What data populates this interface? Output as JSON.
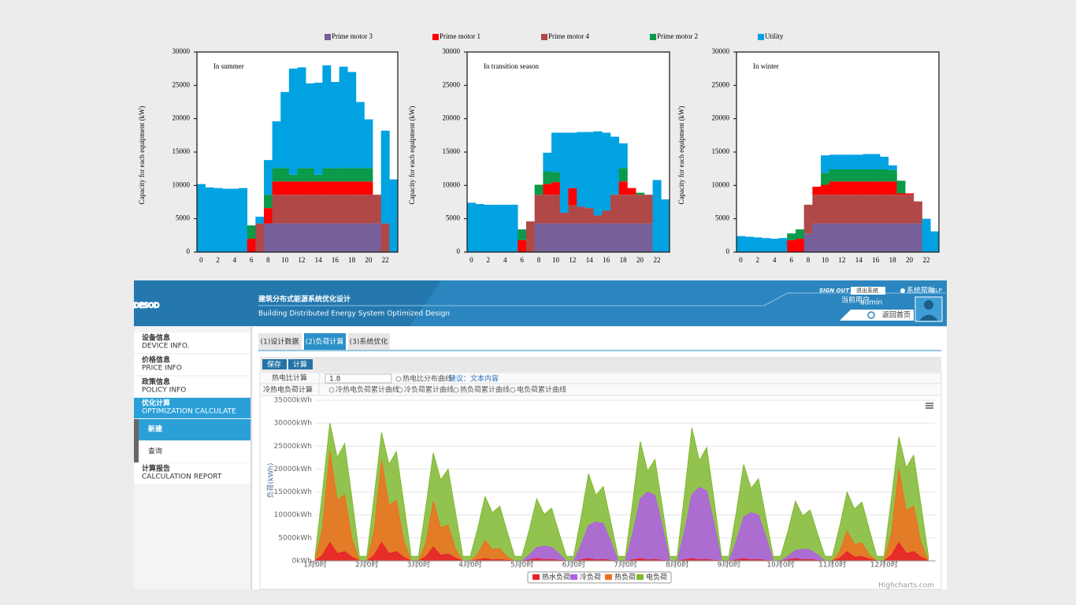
{
  "chart_data": [
    {
      "type": "bar",
      "title": "In summer",
      "y_label": "Capacity for each equipment (kW)",
      "categories": [
        "0",
        null,
        "2",
        null,
        "4",
        null,
        "6",
        null,
        "8",
        null,
        "10",
        null,
        "12",
        null,
        "14",
        null,
        "16",
        null,
        "18",
        null,
        "20",
        null,
        "22",
        null
      ],
      "ylim": [
        0,
        30000
      ],
      "yticks": [
        0,
        5000,
        10000,
        15000,
        20000,
        25000,
        30000
      ],
      "series": [
        {
          "name": "Prime motor 3",
          "color": "#76609a",
          "values": [
            0,
            0,
            0,
            0,
            0,
            0,
            0,
            0,
            4300,
            4300,
            4300,
            4300,
            4300,
            4300,
            4300,
            4300,
            4300,
            4300,
            4300,
            4300,
            4300,
            4300,
            0,
            0
          ]
        },
        {
          "name": "Prime motor 1",
          "color": "#ff0000",
          "values": [
            0,
            0,
            0,
            0,
            0,
            0,
            2000,
            0,
            2300,
            2000,
            2000,
            2000,
            2000,
            2000,
            2000,
            2000,
            2000,
            2000,
            2000,
            2000,
            2000,
            0,
            0,
            0
          ]
        },
        {
          "name": "Prime motor 4",
          "color": "#b04848",
          "values": [
            0,
            0,
            0,
            0,
            0,
            0,
            0,
            4300,
            0,
            4300,
            4300,
            4300,
            4300,
            4300,
            4300,
            4300,
            4300,
            4300,
            4300,
            4300,
            4300,
            4300,
            4300,
            0
          ]
        },
        {
          "name": "Prime motor 2",
          "color": "#0a9a4a",
          "values": [
            0,
            0,
            0,
            0,
            0,
            0,
            2000,
            0,
            2000,
            2000,
            2000,
            1000,
            2000,
            2000,
            1000,
            2000,
            2000,
            2000,
            2000,
            2000,
            2000,
            0,
            0,
            0
          ]
        },
        {
          "name": "Utility",
          "color": "#00a2e2",
          "values": [
            10200,
            9700,
            9600,
            9500,
            9500,
            9600,
            0,
            1000,
            5200,
            7000,
            11400,
            15900,
            15100,
            12700,
            13800,
            15400,
            12900,
            15200,
            14400,
            9900,
            7300,
            0,
            13900,
            10900
          ]
        }
      ]
    },
    {
      "type": "bar",
      "title": "In transition season",
      "y_label": "Capacity for each equipment (kW)",
      "categories": [
        "0",
        null,
        "2",
        null,
        "4",
        null,
        "6",
        null,
        "8",
        null,
        "10",
        null,
        "12",
        null,
        "14",
        null,
        "16",
        null,
        "18",
        null,
        "20",
        null,
        "22",
        null
      ],
      "ylim": [
        0,
        30000
      ],
      "yticks": [
        0,
        5000,
        10000,
        15000,
        20000,
        25000,
        30000
      ],
      "series": [
        {
          "values": [
            0,
            0,
            0,
            0,
            0,
            0,
            0,
            0,
            4300,
            4300,
            4300,
            4300,
            4300,
            4300,
            4300,
            4300,
            4300,
            4300,
            4300,
            4300,
            4300,
            4300,
            0,
            0
          ]
        },
        {
          "values": [
            0,
            0,
            0,
            0,
            0,
            0,
            1800,
            0,
            0,
            1600,
            1900,
            0,
            2600,
            0,
            0,
            0,
            0,
            0,
            2000,
            1000,
            0,
            0,
            0,
            0
          ]
        },
        {
          "values": [
            0,
            0,
            0,
            0,
            0,
            0,
            0,
            4600,
            4300,
            4300,
            4300,
            1600,
            2700,
            2500,
            2300,
            1200,
            1900,
            4300,
            4300,
            4300,
            4300,
            4300,
            0,
            0
          ]
        },
        {
          "values": [
            0,
            0,
            0,
            0,
            0,
            0,
            1600,
            0,
            1500,
            1900,
            1500,
            0,
            0,
            0,
            0,
            0,
            0,
            0,
            2000,
            0,
            300,
            0,
            0,
            0
          ]
        },
        {
          "values": [
            7400,
            7200,
            7100,
            7100,
            7100,
            7100,
            0,
            0,
            0,
            2800,
            5900,
            12000,
            8300,
            11200,
            11400,
            12600,
            11700,
            8700,
            3700,
            0,
            0,
            0,
            10800,
            7900
          ]
        }
      ]
    },
    {
      "type": "bar",
      "title": "In winter",
      "y_label": "Capacity for each equipment (kW)",
      "categories": [
        "0",
        null,
        "2",
        null,
        "4",
        null,
        "6",
        null,
        "8",
        null,
        "10",
        null,
        "12",
        null,
        "14",
        null,
        "16",
        null,
        "18",
        null,
        "20",
        null,
        "22",
        null
      ],
      "ylim": [
        0,
        30000
      ],
      "yticks": [
        0,
        5000,
        10000,
        15000,
        20000,
        25000,
        30000
      ],
      "series": [
        {
          "values": [
            0,
            0,
            0,
            0,
            0,
            0,
            0,
            0,
            2800,
            4300,
            4300,
            4300,
            4300,
            4300,
            4300,
            4300,
            4300,
            4300,
            4300,
            4300,
            4300,
            4300,
            0,
            0
          ]
        },
        {
          "values": [
            0,
            0,
            0,
            0,
            0,
            0,
            1800,
            2000,
            0,
            1200,
            1500,
            2000,
            2000,
            2000,
            2000,
            2000,
            2000,
            2000,
            2000,
            200,
            200,
            0,
            0,
            0
          ]
        },
        {
          "values": [
            0,
            0,
            0,
            0,
            0,
            0,
            0,
            0,
            4300,
            4300,
            4300,
            4300,
            4300,
            4300,
            4300,
            4300,
            4300,
            4300,
            4300,
            4300,
            4300,
            3300,
            0,
            0
          ]
        },
        {
          "values": [
            0,
            0,
            0,
            0,
            0,
            0,
            1000,
            1400,
            0,
            0,
            1800,
            1800,
            1800,
            1800,
            1800,
            1800,
            1800,
            1800,
            1700,
            1900,
            0,
            0,
            0,
            0
          ]
        },
        {
          "values": [
            2400,
            2300,
            2200,
            2100,
            2000,
            2100,
            0,
            0,
            0,
            0,
            2600,
            2200,
            2200,
            2200,
            2200,
            2300,
            2300,
            1900,
            700,
            0,
            0,
            0,
            5000,
            3100
          ]
        }
      ]
    },
    {
      "type": "area",
      "y_label": "负荷(kWh)",
      "credits": "Highcharts.com",
      "categories": [
        "1月0时",
        null,
        null,
        null,
        null,
        null,
        null,
        "2月0时",
        null,
        null,
        null,
        null,
        null,
        null,
        "3月0时",
        null,
        null,
        null,
        null,
        null,
        null,
        "4月0时",
        null,
        null,
        null,
        null,
        null,
        null,
        "5月0时",
        null,
        null,
        null,
        null,
        null,
        null,
        "6月0时",
        null,
        null,
        null,
        null,
        null,
        null,
        "7月0时",
        null,
        null,
        null,
        null,
        null,
        null,
        "8月0时",
        null,
        null,
        null,
        null,
        null,
        null,
        "9月0时",
        null,
        null,
        null,
        null,
        null,
        null,
        "10月0时",
        null,
        null,
        null,
        null,
        null,
        null,
        "11月0时",
        null,
        null,
        null,
        null,
        null,
        null,
        "12月0时",
        null,
        null,
        null,
        null,
        null,
        null
      ],
      "ylim": [
        0,
        35000
      ],
      "yticks": [
        {
          "value": 0,
          "label": "0kWh"
        },
        {
          "value": 5000,
          "label": "5000kWh"
        },
        {
          "value": 10000,
          "label": "10000kWh"
        },
        {
          "value": 15000,
          "label": "15000kWh"
        },
        {
          "value": 20000,
          "label": "20000kWh"
        },
        {
          "value": 25000,
          "label": "25000kWh"
        },
        {
          "value": 30000,
          "label": "30000kWh"
        },
        {
          "value": 35000,
          "label": "35000kWh"
        }
      ],
      "grid": true,
      "series": [
        {
          "name": "热水负荷",
          "color": "#e8202a",
          "values": [
            0,
            1200,
            4000,
            1600,
            2000,
            800,
            0,
            0,
            1200,
            4000,
            1600,
            2000,
            800,
            0,
            0,
            900,
            3000,
            1200,
            1500,
            600,
            0,
            0,
            200,
            500,
            200,
            300,
            100,
            0,
            0,
            200,
            500,
            200,
            300,
            100,
            0,
            0,
            200,
            500,
            200,
            300,
            100,
            0,
            0,
            200,
            500,
            200,
            300,
            100,
            0,
            0,
            200,
            500,
            200,
            300,
            100,
            0,
            0,
            200,
            500,
            200,
            300,
            100,
            0,
            0,
            200,
            500,
            200,
            300,
            100,
            0,
            0,
            600,
            2000,
            800,
            1000,
            400,
            0,
            0,
            1200,
            4000,
            1600,
            2000,
            800,
            0
          ]
        },
        {
          "name": "冷负荷",
          "color": "#b05ee8",
          "values": [
            0,
            0,
            0,
            0,
            0,
            0,
            0,
            0,
            0,
            0,
            0,
            0,
            0,
            0,
            0,
            0,
            0,
            0,
            0,
            0,
            0,
            0,
            0,
            0,
            0,
            0,
            0,
            0,
            0,
            1300,
            2900,
            3200,
            3000,
            1600,
            0,
            0,
            3400,
            7700,
            8500,
            8100,
            4300,
            0,
            0,
            6000,
            13500,
            15000,
            14300,
            7500,
            0,
            0,
            6400,
            14400,
            16000,
            15200,
            8000,
            0,
            0,
            4200,
            9500,
            10500,
            10000,
            5300,
            0,
            0,
            1000,
            2300,
            2500,
            2400,
            1300,
            0,
            0,
            0,
            0,
            0,
            0,
            0,
            0,
            0,
            0,
            0,
            0,
            0,
            0,
            0
          ]
        },
        {
          "name": "热负荷",
          "color": "#f07020",
          "values": [
            0,
            7200,
            24000,
            13200,
            14400,
            4800,
            0,
            0,
            6600,
            22000,
            12100,
            13200,
            4400,
            0,
            0,
            3900,
            13000,
            7200,
            7800,
            2600,
            0,
            0,
            1400,
            4500,
            2500,
            2700,
            900,
            0,
            0,
            300,
            1000,
            600,
            600,
            200,
            0,
            0,
            0,
            0,
            0,
            0,
            0,
            0,
            0,
            0,
            0,
            0,
            0,
            0,
            0,
            0,
            0,
            0,
            0,
            0,
            0,
            0,
            0,
            0,
            0,
            0,
            0,
            0,
            0,
            0,
            0,
            0,
            0,
            0,
            0,
            0,
            0,
            2000,
            6500,
            3600,
            3900,
            1300,
            0,
            0,
            6000,
            20000,
            11000,
            12000,
            4000,
            0
          ]
        },
        {
          "name": "电负荷",
          "color": "#80b830",
          "values": [
            1000,
            15000,
            30000,
            22500,
            25500,
            13500,
            1000,
            1000,
            14000,
            28000,
            21000,
            23800,
            12600,
            1000,
            1000,
            11800,
            23500,
            17600,
            20000,
            10600,
            1000,
            1000,
            7000,
            14000,
            10500,
            11900,
            6300,
            1000,
            1000,
            6800,
            13500,
            10100,
            11500,
            6100,
            1000,
            1000,
            9500,
            19000,
            14300,
            16200,
            8600,
            1000,
            1000,
            13000,
            26000,
            19500,
            22100,
            11700,
            1000,
            1000,
            14500,
            29000,
            21800,
            24700,
            13100,
            1000,
            1000,
            10500,
            21000,
            15800,
            17900,
            9500,
            1000,
            1000,
            6500,
            13000,
            9800,
            11100,
            5900,
            1000,
            1000,
            7500,
            15000,
            11300,
            12800,
            6800,
            1000,
            1000,
            13500,
            27000,
            20300,
            23000,
            12200,
            1000
          ]
        }
      ]
    }
  ],
  "ui": {
    "logo": "DESOD",
    "title_cn": "建筑分布式能源系统优化设计",
    "title_en": "Building Distributed Energy System Optimized Design",
    "sign_out": "SIGN OUT",
    "exit": "退出系统",
    "help_cn": "系统帮助",
    "help": "HELP",
    "user_label": "当前用户",
    "user": "admin",
    "home": "返回首页",
    "menu": [
      {
        "cn": "设备信息",
        "en": "DEVICE INFO."
      },
      {
        "cn": "价格信息",
        "en": "PRICE INFO"
      },
      {
        "cn": "政策信息",
        "en": "POLICY INFO"
      },
      {
        "cn": "优化计算",
        "en": "OPTIMIZATION CALCULATE"
      },
      {
        "cn": "计算报告",
        "en": "CALCULATION REPORT"
      }
    ],
    "submenu": [
      "新建",
      "查询"
    ],
    "tabs": [
      "(1)设计数据",
      "(2)负荷计算",
      "(3)系统优化"
    ],
    "buttons": [
      "保存",
      "计算"
    ],
    "form": {
      "ratio_label": "热电比计算",
      "ratio_value": "1.8",
      "ratio_curve": "热电比分布曲线",
      "suggest": "建议：文本内容",
      "load_label": "冷热电负荷计算",
      "load_options": [
        "冷热电负荷累计曲线",
        "冷负荷累计曲线",
        "热负荷累计曲线",
        "电负荷累计曲线"
      ]
    }
  }
}
